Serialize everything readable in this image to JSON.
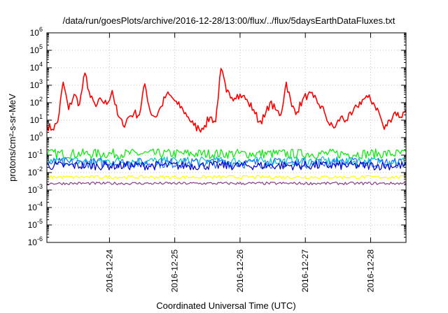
{
  "chart_data": {
    "type": "line",
    "title": "/data/run/goesPlots/archive/2016-12-28/13:00/flux/../flux/5daysEarthDataFluxes.txt",
    "xlabel": "Coordinated Universal Time (UTC)",
    "ylabel": "protons/cm²-s-sr-MeV",
    "yscale": "log",
    "ylim": [
      1e-06,
      1000000.0
    ],
    "xlim": [
      "2016-12-23T01:00",
      "2016-12-28T13:00"
    ],
    "grid": true,
    "legend": "none",
    "y_ticks": [
      {
        "base": "10",
        "exp": "-6",
        "value": 1e-06
      },
      {
        "base": "10",
        "exp": "-5",
        "value": 1e-05
      },
      {
        "base": "10",
        "exp": "-4",
        "value": 0.0001
      },
      {
        "base": "10",
        "exp": "-3",
        "value": 0.001
      },
      {
        "base": "10",
        "exp": "-2",
        "value": 0.01
      },
      {
        "base": "10",
        "exp": "-1",
        "value": 0.1
      },
      {
        "base": "10",
        "exp": "0",
        "value": 1
      },
      {
        "base": "10",
        "exp": "1",
        "value": 10
      },
      {
        "base": "10",
        "exp": "2",
        "value": 100
      },
      {
        "base": "10",
        "exp": "3",
        "value": 1000
      },
      {
        "base": "10",
        "exp": "4",
        "value": 10000
      },
      {
        "base": "10",
        "exp": "5",
        "value": 100000
      },
      {
        "base": "10",
        "exp": "6",
        "value": 1000000
      }
    ],
    "x_ticks": [
      "2016-12-24",
      "2016-12-25",
      "2016-12-26",
      "2016-12-27",
      "2016-12-28"
    ],
    "series": [
      {
        "color": "#ff0000",
        "x": [
          "2016-12-23T01:00",
          "2016-12-23T03:00",
          "2016-12-23T05:00",
          "2016-12-23T07:00",
          "2016-12-23T09:00",
          "2016-12-23T11:00",
          "2016-12-23T13:00",
          "2016-12-23T15:00",
          "2016-12-23T17:00",
          "2016-12-23T19:00",
          "2016-12-23T21:00",
          "2016-12-23T23:00",
          "2016-12-24T01:00",
          "2016-12-24T03:00",
          "2016-12-24T05:00",
          "2016-12-24T07:00",
          "2016-12-24T09:00",
          "2016-12-24T11:00",
          "2016-12-24T13:00",
          "2016-12-24T15:00",
          "2016-12-24T17:00",
          "2016-12-24T19:00",
          "2016-12-24T21:00",
          "2016-12-24T23:00",
          "2016-12-25T01:00",
          "2016-12-25T03:00",
          "2016-12-25T05:00",
          "2016-12-25T07:00",
          "2016-12-25T09:00",
          "2016-12-25T11:00",
          "2016-12-25T13:00",
          "2016-12-25T15:00",
          "2016-12-25T17:00",
          "2016-12-25T19:00",
          "2016-12-25T21:00",
          "2016-12-25T23:00",
          "2016-12-26T01:00",
          "2016-12-26T03:00",
          "2016-12-26T05:00",
          "2016-12-26T07:00",
          "2016-12-26T09:00",
          "2016-12-26T11:00",
          "2016-12-26T13:00",
          "2016-12-26T15:00",
          "2016-12-26T17:00",
          "2016-12-26T19:00",
          "2016-12-26T21:00",
          "2016-12-26T23:00",
          "2016-12-27T01:00",
          "2016-12-27T03:00",
          "2016-12-27T05:00",
          "2016-12-27T07:00",
          "2016-12-27T09:00",
          "2016-12-27T11:00",
          "2016-12-27T13:00",
          "2016-12-27T15:00",
          "2016-12-27T17:00",
          "2016-12-27T19:00",
          "2016-12-27T21:00",
          "2016-12-27T23:00",
          "2016-12-28T01:00",
          "2016-12-28T03:00",
          "2016-12-28T05:00",
          "2016-12-28T07:00",
          "2016-12-28T09:00",
          "2016-12-28T11:00",
          "2016-12-28T13:00"
        ],
        "values": [
          5,
          3,
          8,
          1500,
          40,
          300,
          80,
          5000,
          200,
          60,
          150,
          80,
          500,
          20,
          5,
          15,
          25,
          20,
          1200,
          30,
          15,
          60,
          300,
          200,
          80,
          40,
          15,
          5,
          3,
          5,
          15,
          8,
          9000,
          400,
          200,
          300,
          250,
          100,
          40,
          8,
          15,
          100,
          40,
          20,
          1500,
          60,
          30,
          150,
          300,
          200,
          80,
          30,
          5,
          4,
          15,
          10,
          20,
          60,
          150,
          200,
          100,
          30,
          3,
          10,
          30,
          15,
          40
        ]
      },
      {
        "color": "#00ee00",
        "level": 0.12,
        "spread": 1.9
      },
      {
        "color": "#00c8c8",
        "level": 0.045,
        "spread": 1.8
      },
      {
        "color": "#2a6cff",
        "level": 0.035,
        "spread": 2.0
      },
      {
        "color": "#0000cc",
        "level": 0.025,
        "spread": 1.8
      },
      {
        "color": "#ffff00",
        "level": 0.0055,
        "spread": 1.25
      },
      {
        "color": "#8b3a8b",
        "level": 0.0024,
        "spread": 1.2
      }
    ]
  }
}
